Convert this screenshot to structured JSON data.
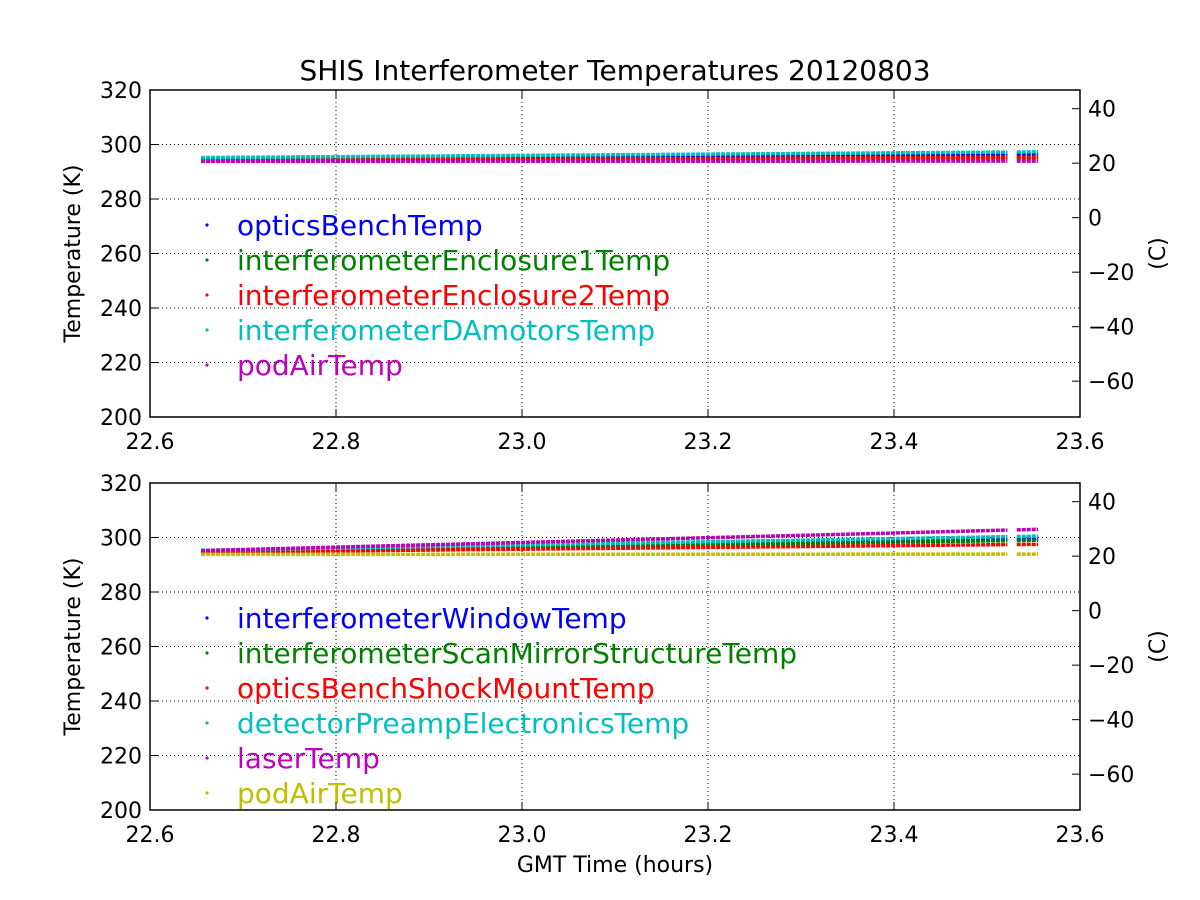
{
  "title": "SHIS Interferometer Temperatures 20120803",
  "chart_data": [
    {
      "type": "scatter",
      "xlabel": "",
      "ylabel": "Temperature (K)",
      "y2label": "(C)",
      "xlim": [
        22.6,
        23.6
      ],
      "ylim": [
        200,
        320
      ],
      "y2lim": [
        -73.15,
        46.85
      ],
      "x_ticks": [
        "22.6",
        "22.8",
        "23.0",
        "23.2",
        "23.4",
        "23.6"
      ],
      "y_ticks": [
        "200",
        "220",
        "240",
        "260",
        "280",
        "300",
        "320"
      ],
      "y2_ticks": [
        "−60",
        "−40",
        "−20",
        "0",
        "20",
        "40"
      ],
      "grid": true,
      "legend_position": "center-left",
      "x_range": [
        22.655,
        23.555
      ],
      "gap": [
        23.522,
        23.532
      ],
      "series": [
        {
          "name": "opticsBenchTemp",
          "color": "#0000ff",
          "y_start": 294.6,
          "y_end": 296.5
        },
        {
          "name": "interferometerEnclosure1Temp",
          "color": "#008000",
          "y_start": 294.3,
          "y_end": 295.0
        },
        {
          "name": "interferometerEnclosure2Temp",
          "color": "#ff0000",
          "y_start": 294.0,
          "y_end": 295.4
        },
        {
          "name": "interferometerDAmotorsTemp",
          "color": "#00bfbf",
          "y_start": 295.2,
          "y_end": 297.3
        },
        {
          "name": "podAirTemp",
          "color": "#bf00bf",
          "y_start": 293.8,
          "y_end": 293.9
        }
      ]
    },
    {
      "type": "scatter",
      "xlabel": "GMT Time (hours)",
      "ylabel": "Temperature (K)",
      "y2label": "(C)",
      "xlim": [
        22.6,
        23.6
      ],
      "ylim": [
        200,
        320
      ],
      "y2lim": [
        -73.15,
        46.85
      ],
      "x_ticks": [
        "22.6",
        "22.8",
        "23.0",
        "23.2",
        "23.4",
        "23.6"
      ],
      "y_ticks": [
        "200",
        "220",
        "240",
        "260",
        "280",
        "300",
        "320"
      ],
      "y2_ticks": [
        "−60",
        "−40",
        "−20",
        "0",
        "20",
        "40"
      ],
      "grid": true,
      "legend_position": "center-left",
      "x_range": [
        22.655,
        23.555
      ],
      "gap": [
        23.522,
        23.532
      ],
      "series": [
        {
          "name": "interferometerWindowTemp",
          "color": "#0000ff",
          "y_start": 295.0,
          "y_end": 299.5
        },
        {
          "name": "interferometerScanMirrorStructureTemp",
          "color": "#008000",
          "y_start": 294.8,
          "y_end": 299.0
        },
        {
          "name": "opticsBenchShockMountTemp",
          "color": "#ff0000",
          "y_start": 294.6,
          "y_end": 297.5
        },
        {
          "name": "detectorPreampElectronicsTemp",
          "color": "#00bfbf",
          "y_start": 295.3,
          "y_end": 300.5
        },
        {
          "name": "laserTemp",
          "color": "#bf00bf",
          "y_start": 295.2,
          "y_end": 303.0
        },
        {
          "name": "podAirTemp",
          "color": "#bfbf00",
          "y_start": 293.8,
          "y_end": 293.9
        }
      ]
    }
  ]
}
